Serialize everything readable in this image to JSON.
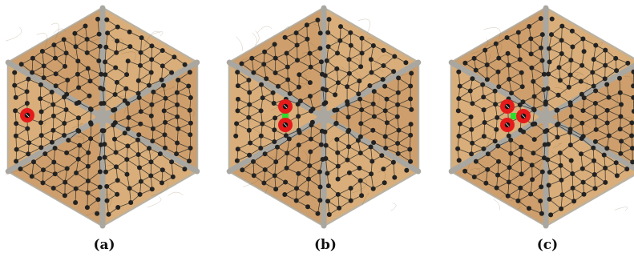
{
  "figure": {
    "panels": [
      {
        "caption": "(a)",
        "highlighted_nodes": 1,
        "connector_nodes": 0
      },
      {
        "caption": "(b)",
        "highlighted_nodes": 2,
        "connector_nodes": 1
      },
      {
        "caption": "(c)",
        "highlighted_nodes": 3,
        "connector_nodes": 1
      }
    ]
  },
  "colors": {
    "board_fill": "#d9ae7a",
    "board_shade": "#c49461",
    "groove": "#a9a7a0",
    "node": "#222222",
    "highlight": "#e51b1b",
    "connector": "#2fdd2f"
  }
}
